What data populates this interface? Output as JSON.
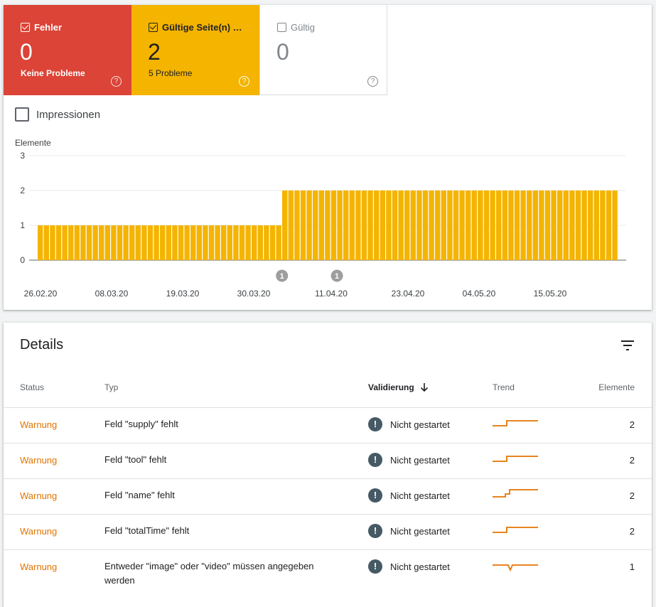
{
  "tiles": {
    "errors": {
      "label": "Fehler",
      "count": "0",
      "sub": "Keine Probleme",
      "checked": true
    },
    "warnings": {
      "label": "Gültige Seite(n) …",
      "count": "2",
      "sub": "5 Probleme",
      "checked": true
    },
    "valid": {
      "label": "Gültig",
      "count": "0",
      "sub": "",
      "checked": false
    }
  },
  "impressions_label": "Impressionen",
  "colors": {
    "error": "#db4437",
    "warning": "#f4b400",
    "trend": "#e37400",
    "annotation": "#9e9e9e"
  },
  "chart_data": {
    "type": "bar",
    "ylabel": "Elemente",
    "ylim": [
      0,
      3
    ],
    "yticks": [
      "0",
      "1",
      "2",
      "3"
    ],
    "xticks": [
      "26.02.20",
      "08.03.20",
      "19.03.20",
      "30.03.20",
      "11.04.20",
      "23.04.20",
      "04.05.20",
      "15.05.20"
    ],
    "series": [
      {
        "values": [
          1,
          1,
          1,
          1,
          1,
          1,
          1,
          1,
          1,
          1,
          1,
          1,
          1,
          1,
          1,
          1,
          1,
          1,
          1,
          1,
          1,
          1,
          1,
          1,
          1,
          1,
          1,
          1,
          1,
          1,
          1,
          1,
          1,
          1,
          1,
          1,
          1,
          1,
          1,
          1,
          2,
          2,
          2,
          2,
          2,
          2,
          2,
          2,
          2,
          2,
          2,
          2,
          2,
          2,
          2,
          2,
          2,
          2,
          2,
          2,
          2,
          2,
          2,
          2,
          2,
          2,
          2,
          2,
          2,
          2,
          2,
          2,
          2,
          2,
          2,
          2,
          2,
          2,
          2,
          2,
          2,
          2,
          2,
          2,
          2,
          2,
          2,
          2,
          2,
          2,
          2,
          2,
          2,
          2,
          2
        ]
      }
    ],
    "annotations": [
      {
        "label": "1",
        "bar_index": 40
      },
      {
        "label": "1",
        "bar_index": 49
      }
    ]
  },
  "details": {
    "title": "Details",
    "columns": {
      "status": "Status",
      "type": "Typ",
      "validation": "Validierung",
      "trend": "Trend",
      "items": "Elemente"
    },
    "rows": [
      {
        "status": "Warnung",
        "type": "Feld \"supply\" fehlt",
        "validation": "Nicht gestartet",
        "count": "2",
        "trend": "step"
      },
      {
        "status": "Warnung",
        "type": "Feld \"tool\" fehlt",
        "validation": "Nicht gestartet",
        "count": "2",
        "trend": "step"
      },
      {
        "status": "Warnung",
        "type": "Feld \"name\" fehlt",
        "validation": "Nicht gestartet",
        "count": "2",
        "trend": "step2"
      },
      {
        "status": "Warnung",
        "type": "Feld \"totalTime\" fehlt",
        "validation": "Nicht gestartet",
        "count": "2",
        "trend": "step"
      },
      {
        "status": "Warnung",
        "type": "Entweder \"image\" oder \"video\" müssen angegeben werden",
        "validation": "Nicht gestartet",
        "count": "1",
        "trend": "dip"
      }
    ]
  }
}
